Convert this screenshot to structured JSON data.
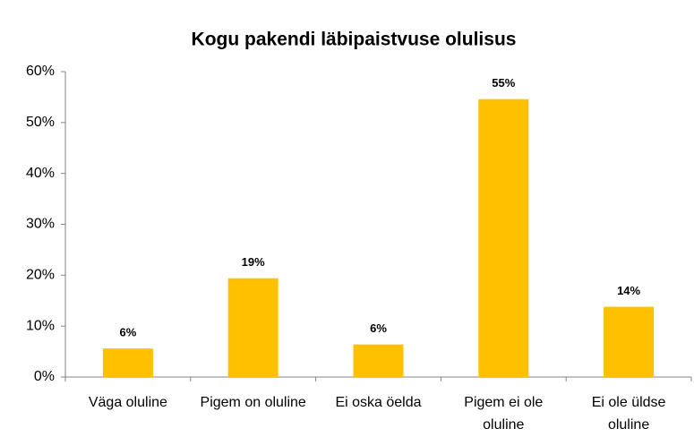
{
  "chart_data": {
    "type": "bar",
    "title": "Kogu pakendi läbipaistvuse olulisus",
    "categories": [
      "Väga oluline",
      "Pigem on oluline",
      "Ei oska öelda",
      "Pigem ei ole oluline",
      "Ei ole üldse oluline"
    ],
    "values": [
      5.6,
      19.4,
      6.4,
      54.6,
      13.8
    ],
    "value_labels": [
      "6%",
      "19%",
      "6%",
      "55%",
      "14%"
    ],
    "color": "#ffc000",
    "ylim": [
      0,
      60
    ],
    "yticks": [
      {
        "value": 0,
        "label": "0%"
      },
      {
        "value": 10,
        "label": "10%"
      },
      {
        "value": 20,
        "label": "20%"
      },
      {
        "value": 30,
        "label": "30%"
      },
      {
        "value": 40,
        "label": "40%"
      },
      {
        "value": 50,
        "label": "50%"
      },
      {
        "value": 60,
        "label": "60%"
      }
    ],
    "grid": false
  }
}
